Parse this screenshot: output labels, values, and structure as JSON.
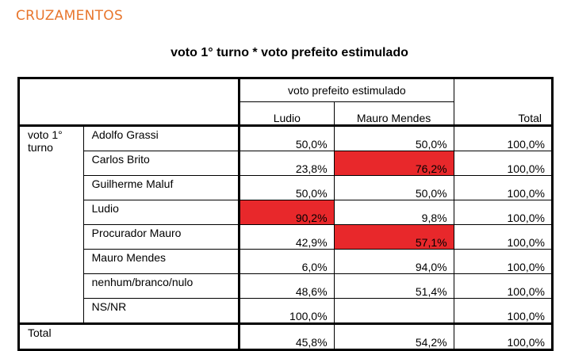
{
  "section_label": "CRUZAMENTOS",
  "title": "voto 1° turno * voto prefeito estimulado",
  "header": {
    "group_label": "voto prefeito estimulado",
    "col_ludio": "Ludio",
    "col_mauro": "Mauro Mendes",
    "col_total": "Total"
  },
  "row_group_label": "voto 1° turno",
  "rows": [
    {
      "name": "Adolfo Grassi",
      "ludio": "50,0%",
      "mauro": "50,0%",
      "total": "100,0%"
    },
    {
      "name": "Carlos Brito",
      "ludio": "23,8%",
      "mauro": "76,2%",
      "total": "100,0%"
    },
    {
      "name": "Guilherme Maluf",
      "ludio": "50,0%",
      "mauro": "50,0%",
      "total": "100,0%"
    },
    {
      "name": "Ludio",
      "ludio": "90,2%",
      "mauro": "9,8%",
      "total": "100,0%"
    },
    {
      "name": "Procurador Mauro",
      "ludio": "42,9%",
      "mauro": "57,1%",
      "total": "100,0%"
    },
    {
      "name": "Mauro Mendes",
      "ludio": "6,0%",
      "mauro": "94,0%",
      "total": "100,0%"
    },
    {
      "name": "nenhum/branco/nulo",
      "ludio": "48,6%",
      "mauro": "51,4%",
      "total": "100,0%"
    },
    {
      "name": "NS/NR",
      "ludio": "100,0%",
      "mauro": "",
      "total": "100,0%"
    }
  ],
  "total_row": {
    "label": "Total",
    "ludio": "45,8%",
    "mauro": "54,2%",
    "total": "100,0%"
  },
  "highlight_color": "#e8282b",
  "accent_color": "#e8762d"
}
